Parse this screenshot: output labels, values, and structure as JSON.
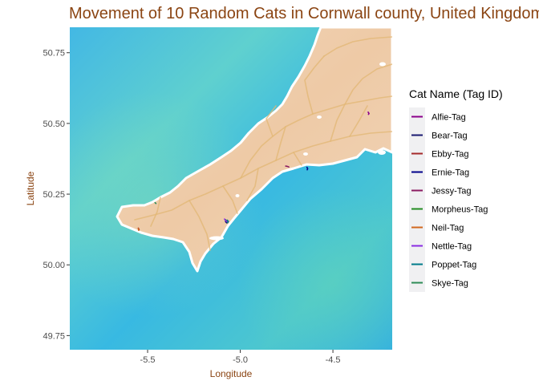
{
  "chart_data": {
    "type": "line",
    "title": "Movement of 10 Random Cats in Cornwall county, United Kingdom",
    "xlabel": "Longitude",
    "ylabel": "Latitude",
    "xlim": [
      -5.92,
      -4.18
    ],
    "ylim": [
      49.7,
      50.84
    ],
    "xticks": [
      -5.5,
      -5.0,
      -4.5
    ],
    "xtick_labels": [
      "-5.5",
      "-5.0",
      "-4.5"
    ],
    "yticks": [
      49.75,
      50.0,
      50.25,
      50.5,
      50.75
    ],
    "ytick_labels": [
      "49.75",
      "50.00",
      "50.25",
      "50.50",
      "50.75"
    ],
    "basemap": "watercolor map of Cornwall",
    "legend": {
      "title": "Cat Name (Tag ID)",
      "position": "right",
      "background": "#f0f0f2"
    },
    "series": [
      {
        "name": "Alfie-Tag",
        "color": "#8B008B",
        "x": [
          -4.31,
          -4.305,
          -4.308
        ],
        "y": [
          50.54,
          50.535,
          50.532
        ]
      },
      {
        "name": "Bear-Tag",
        "color": "#191970",
        "x": [
          -5.08,
          -5.075,
          -5.072,
          -5.079
        ],
        "y": [
          50.155,
          50.151,
          50.148,
          50.152
        ]
      },
      {
        "name": "Ebby-Tag",
        "color": "#A52A2A",
        "x": [
          -5.55,
          -5.546
        ],
        "y": [
          50.13,
          50.124
        ]
      },
      {
        "name": "Ernie-Tag",
        "color": "#00008B",
        "x": [
          -4.64,
          -4.636,
          -4.639
        ],
        "y": [
          50.345,
          50.34,
          50.336
        ]
      },
      {
        "name": "Jessy-Tag",
        "color": "#8B1C62",
        "x": [
          -4.755,
          -4.745,
          -4.738
        ],
        "y": [
          50.349,
          50.348,
          50.346
        ]
      },
      {
        "name": "Morpheus-Tag",
        "color": "#228B22",
        "x": [
          -5.08,
          -5.074,
          -5.068
        ],
        "y": [
          50.16,
          50.156,
          50.15
        ]
      },
      {
        "name": "Neil-Tag",
        "color": "#D2691E",
        "x": [
          -5.55,
          -5.548
        ],
        "y": [
          50.128,
          50.122
        ]
      },
      {
        "name": "Nettle-Tag",
        "color": "#8A2BE2",
        "x": [
          -5.085,
          -5.079,
          -5.072
        ],
        "y": [
          50.162,
          50.157,
          50.153
        ]
      },
      {
        "name": "Poppet-Tag",
        "color": "#007B8A",
        "x": [
          -5.07,
          -5.064,
          -5.068
        ],
        "y": [
          50.158,
          50.153,
          50.149
        ]
      },
      {
        "name": "Skye-Tag",
        "color": "#2E8B57",
        "x": [
          -5.46,
          -5.455
        ],
        "y": [
          50.22,
          50.217
        ]
      }
    ]
  }
}
